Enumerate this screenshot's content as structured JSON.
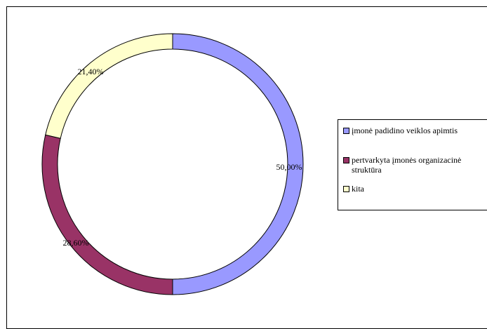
{
  "chart_data": {
    "type": "pie",
    "variant": "doughnut",
    "title": "",
    "series": [
      {
        "name": "įmonė padidino veiklos apimtis",
        "value": 50.0,
        "label": "50,00%",
        "color": "#9999FF"
      },
      {
        "name": "pertvarkyta įmonės organizacinė struktūra",
        "value": 28.6,
        "label": "28,60%",
        "color": "#993366"
      },
      {
        "name": "kita",
        "value": 21.4,
        "label": "21,40%",
        "color": "#FFFFCC"
      }
    ],
    "legend": {
      "placement": "right",
      "items": [
        {
          "lines": [
            "įmonė padidino veiklos apimtis"
          ],
          "color": "#9999FF"
        },
        {
          "lines": [
            "pertvarkyta įmonės organizacinė",
            "struktūra"
          ],
          "color": "#993366"
        },
        {
          "lines": [
            "kita"
          ],
          "color": "#FFFFCC"
        }
      ]
    }
  }
}
